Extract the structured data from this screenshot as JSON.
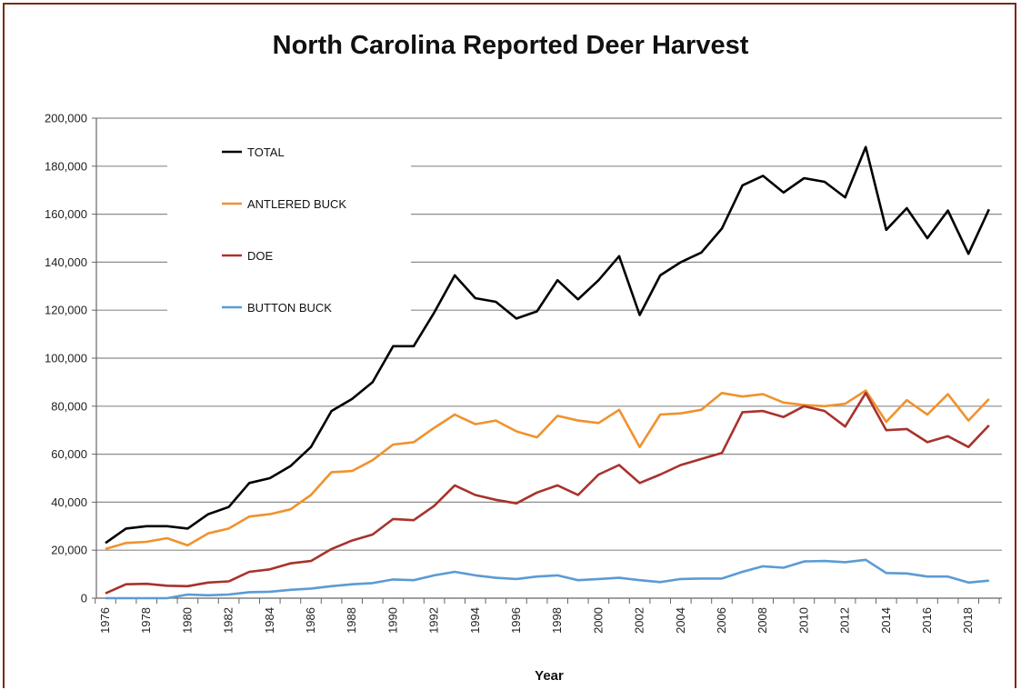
{
  "chart_data": {
    "type": "line",
    "title": "North Carolina Reported Deer Harvest",
    "xlabel": "Year",
    "ylabel": "",
    "ylim": [
      0,
      200000
    ],
    "yticks": [
      0,
      20000,
      40000,
      60000,
      80000,
      100000,
      120000,
      140000,
      160000,
      180000,
      200000
    ],
    "ytick_labels": [
      "0",
      "20,000",
      "40,000",
      "60,000",
      "80,000",
      "100,000",
      "120,000",
      "140,000",
      "160,000",
      "180,000",
      "200,000"
    ],
    "xtick_labels": [
      "1976",
      "1978",
      "1980",
      "1982",
      "1984",
      "1986",
      "1988",
      "1990",
      "1992",
      "1994",
      "1996",
      "1998",
      "2000",
      "2002",
      "2004",
      "2006",
      "2008",
      "2010",
      "2012",
      "2014",
      "2016",
      "2018"
    ],
    "grid": "horizontal",
    "legend_position": "top-left",
    "x": [
      1976,
      1977,
      1978,
      1979,
      1980,
      1981,
      1982,
      1983,
      1984,
      1985,
      1986,
      1987,
      1988,
      1989,
      1990,
      1991,
      1992,
      1993,
      1994,
      1995,
      1996,
      1997,
      1998,
      1999,
      2000,
      2001,
      2002,
      2003,
      2004,
      2005,
      2006,
      2007,
      2008,
      2009,
      2010,
      2011,
      2012,
      2013,
      2014,
      2015,
      2016,
      2017,
      2018,
      2019
    ],
    "series": [
      {
        "name": "TOTAL",
        "color": "#000000",
        "values": [
          23000,
          29000,
          30000,
          30000,
          29000,
          35000,
          38000,
          48000,
          50000,
          55000,
          63000,
          78000,
          83000,
          90000,
          105000,
          105000,
          119000,
          134500,
          125000,
          123500,
          116500,
          119500,
          132500,
          124500,
          132500,
          142500,
          118000,
          134500,
          140000,
          144000,
          154000,
          172000,
          176000,
          169000,
          175000,
          173500,
          167000,
          188000,
          153500,
          162500,
          150000,
          161500,
          143500,
          162000
        ]
      },
      {
        "name": "ANTLERED BUCK",
        "color": "#f0922e",
        "values": [
          20500,
          23000,
          23500,
          25000,
          22000,
          27000,
          29000,
          34000,
          35000,
          37000,
          43000,
          52500,
          53000,
          57500,
          64000,
          65000,
          71000,
          76500,
          72500,
          74000,
          69500,
          67000,
          76000,
          74000,
          73000,
          78500,
          63000,
          76500,
          77000,
          78500,
          85500,
          84000,
          85000,
          81500,
          80500,
          80000,
          81000,
          86500,
          73500,
          82500,
          76500,
          85000,
          74000,
          83000
        ]
      },
      {
        "name": "DOE",
        "color": "#a8322c",
        "values": [
          2000,
          5800,
          6000,
          5200,
          5000,
          6500,
          7000,
          11000,
          12000,
          14500,
          15500,
          20500,
          24000,
          26500,
          33000,
          32500,
          38500,
          47000,
          43000,
          41000,
          39500,
          44000,
          47000,
          43000,
          51500,
          55500,
          48000,
          51500,
          55500,
          58000,
          60500,
          77500,
          78000,
          75500,
          80000,
          78000,
          71500,
          85500,
          70000,
          70500,
          65000,
          67500,
          63000,
          72000
        ]
      },
      {
        "name": "BUTTON BUCK",
        "color": "#5b9bd5",
        "values": [
          0,
          0,
          0,
          0,
          1500,
          1200,
          1500,
          2500,
          2700,
          3500,
          4000,
          5000,
          5800,
          6300,
          7800,
          7500,
          9500,
          11000,
          9500,
          8500,
          8000,
          9000,
          9500,
          7500,
          8000,
          8500,
          7500,
          6700,
          8000,
          8200,
          8200,
          11000,
          13300,
          12700,
          15300,
          15500,
          15000,
          16000,
          10500,
          10300,
          9000,
          9000,
          6500,
          7300
        ]
      }
    ]
  }
}
